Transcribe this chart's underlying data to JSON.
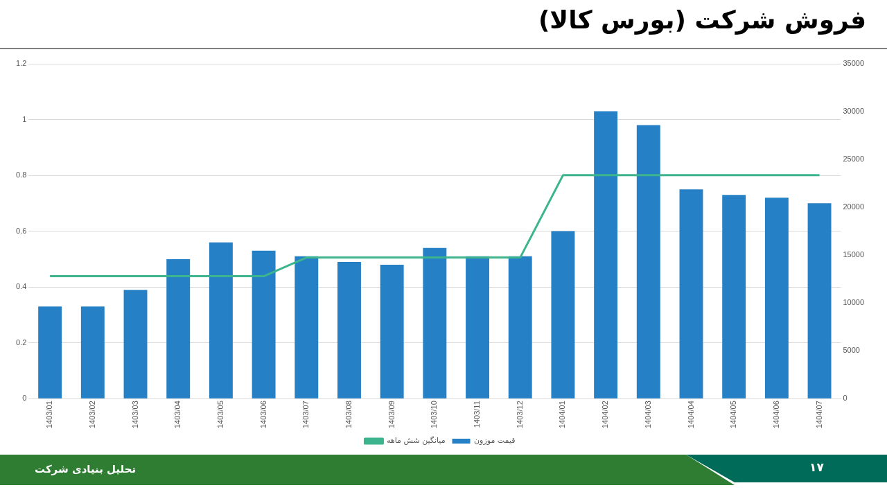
{
  "chart_data": {
    "type": "bar",
    "title": "فروش شرکت (بورس کالا)",
    "categories": [
      "1403/01",
      "1403/02",
      "1403/03",
      "1403/04",
      "1403/05",
      "1403/06",
      "1403/07",
      "1403/08",
      "1403/09",
      "1403/10",
      "1403/11",
      "1403/12",
      "1404/01",
      "1404/02",
      "1404/03",
      "1404/04",
      "1404/05",
      "1404/06",
      "1404/07"
    ],
    "series": [
      {
        "name": "قیمت موزون",
        "color": "#2680c6",
        "values": [
          0.33,
          0.33,
          0.39,
          0.5,
          0.56,
          0.53,
          0.51,
          0.49,
          0.48,
          0.54,
          0.51,
          0.51,
          0.6,
          1.03,
          0.98,
          0.75,
          0.73,
          0.72,
          0.7
        ]
      },
      {
        "name": "میانگین شش ماهه",
        "type": "line",
        "axis": "y2",
        "color": "#3cb58e",
        "values": [
          12800,
          12800,
          12800,
          12800,
          12800,
          12800,
          14750,
          14750,
          14750,
          14750,
          14750,
          14750,
          23350,
          23350,
          23350,
          23350,
          23350,
          23350,
          23350
        ]
      }
    ],
    "ylim": [
      0,
      1.2
    ],
    "yticks": [
      0,
      0.2,
      0.4,
      0.6,
      0.8,
      1,
      1.2
    ],
    "y2lim": [
      0,
      35000
    ],
    "y2ticks": [
      0,
      5000,
      10000,
      15000,
      20000,
      25000,
      30000,
      35000
    ],
    "grid": "y",
    "legend": "bottom",
    "marker": "none",
    "line_style": "solid",
    "annotations": [
      "تحلیل بنیادی شرکت",
      "۱۷"
    ]
  }
}
